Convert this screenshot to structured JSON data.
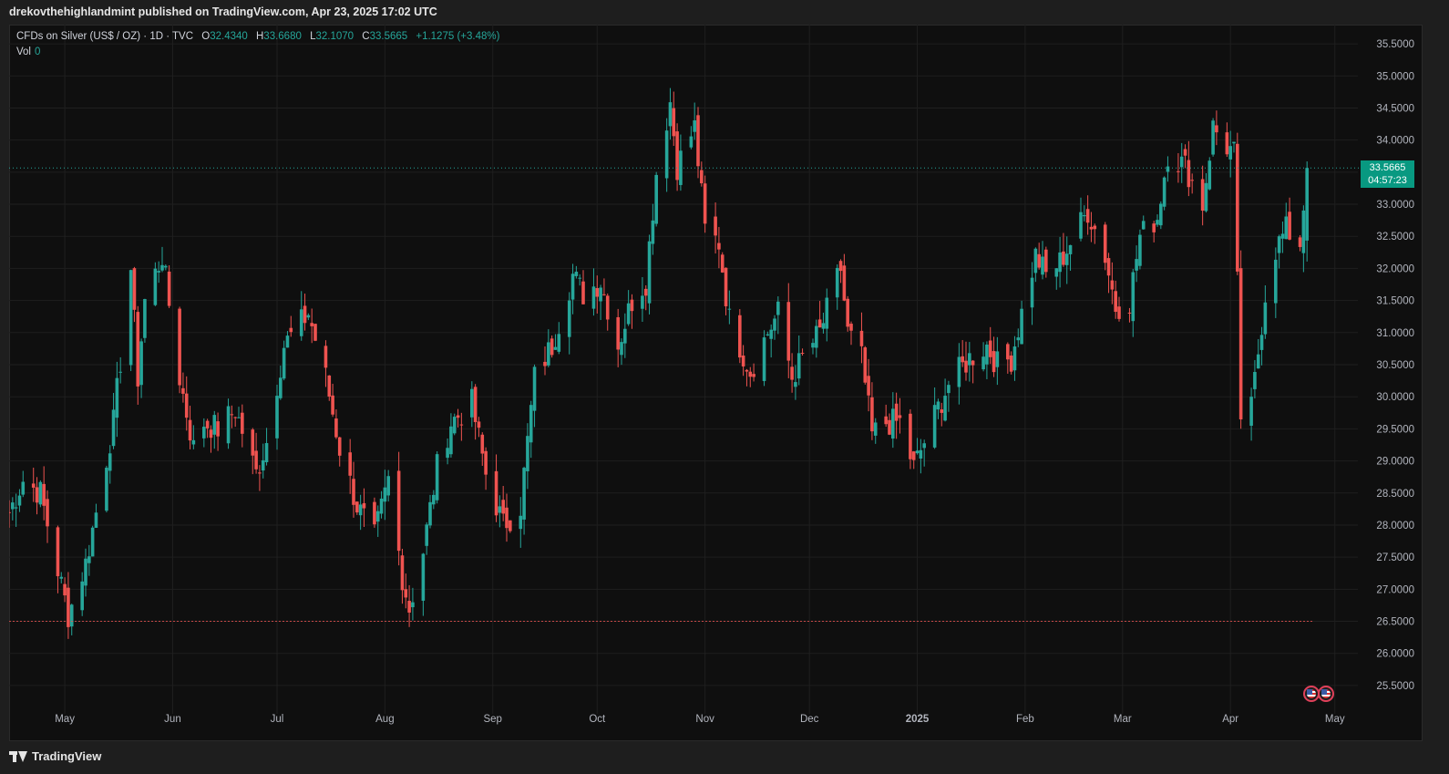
{
  "header": {
    "publish_text": "drekovthehighlandmint published on TradingView.com, Apr 23, 2025 17:02 UTC"
  },
  "legend": {
    "symbol": "CFDs on Silver (US$ / OZ) · 1D · TVC",
    "o_label": "O",
    "o_value": "32.4340",
    "h_label": "H",
    "h_value": "33.6680",
    "l_label": "L",
    "l_value": "32.1070",
    "c_label": "C",
    "c_value": "33.5665",
    "change": "+1.1275 (+3.48%)",
    "vol_label": "Vol",
    "vol_value": "0"
  },
  "price_tag": {
    "price": "33.5665",
    "countdown": "04:57:23"
  },
  "footer": {
    "brand": "TradingView"
  },
  "colors": {
    "up": "#26a69a",
    "down": "#ef5350",
    "background": "#0f0f0f",
    "grid": "#1f1f1f"
  },
  "icons": [
    "tradingview-logo-icon",
    "us-flag-icon"
  ],
  "chart_data": {
    "type": "candlestick",
    "y_ticks": [
      "25.5000",
      "26.0000",
      "26.5000",
      "27.0000",
      "27.5000",
      "28.0000",
      "28.5000",
      "29.0000",
      "29.5000",
      "30.0000",
      "30.5000",
      "31.0000",
      "31.5000",
      "32.0000",
      "32.5000",
      "33.0000",
      "33.5000",
      "34.0000",
      "34.5000",
      "35.0000",
      "35.5000"
    ],
    "ylim": [
      25.2,
      35.8
    ],
    "x_range": [
      "2024-04-15",
      "2025-05-05"
    ],
    "x_ticks": [
      {
        "label": "May",
        "date": "2024-05-01"
      },
      {
        "label": "Jun",
        "date": "2024-06-01"
      },
      {
        "label": "Jul",
        "date": "2024-07-01"
      },
      {
        "label": "Aug",
        "date": "2024-08-01"
      },
      {
        "label": "Sep",
        "date": "2024-09-01"
      },
      {
        "label": "Oct",
        "date": "2024-10-01"
      },
      {
        "label": "Nov",
        "date": "2024-11-01"
      },
      {
        "label": "Dec",
        "date": "2024-12-01"
      },
      {
        "label": "2025",
        "date": "2025-01-01"
      },
      {
        "label": "Feb",
        "date": "2025-02-01"
      },
      {
        "label": "Mar",
        "date": "2025-03-01"
      },
      {
        "label": "Apr",
        "date": "2025-04-01"
      },
      {
        "label": "May",
        "date": "2025-05-01"
      }
    ],
    "current_price": 33.5665,
    "reference_line": 26.5,
    "close_anchors": [
      [
        "2024-04-15",
        28.2
      ],
      [
        "2024-04-19",
        28.7
      ],
      [
        "2024-04-24",
        28.5
      ],
      [
        "2024-04-29",
        27.3
      ],
      [
        "2024-05-02",
        26.6
      ],
      [
        "2024-05-07",
        27.4
      ],
      [
        "2024-05-10",
        28.2
      ],
      [
        "2024-05-15",
        29.6
      ],
      [
        "2024-05-20",
        32.0
      ],
      [
        "2024-05-22",
        30.3
      ],
      [
        "2024-05-24",
        31.5
      ],
      [
        "2024-05-29",
        32.2
      ],
      [
        "2024-06-03",
        30.3
      ],
      [
        "2024-06-07",
        29.2
      ],
      [
        "2024-06-10",
        29.6
      ],
      [
        "2024-06-14",
        29.5
      ],
      [
        "2024-06-19",
        29.8
      ],
      [
        "2024-06-25",
        28.8
      ],
      [
        "2024-06-28",
        29.3
      ],
      [
        "2024-07-03",
        30.8
      ],
      [
        "2024-07-10",
        31.3
      ],
      [
        "2024-07-15",
        30.3
      ],
      [
        "2024-07-19",
        29.2
      ],
      [
        "2024-07-24",
        28.3
      ],
      [
        "2024-07-29",
        27.8
      ],
      [
        "2024-08-02",
        28.7
      ],
      [
        "2024-08-06",
        27.2
      ],
      [
        "2024-08-08",
        26.7
      ],
      [
        "2024-08-12",
        27.6
      ],
      [
        "2024-08-16",
        28.9
      ],
      [
        "2024-08-20",
        29.6
      ],
      [
        "2024-08-26",
        29.9
      ],
      [
        "2024-08-30",
        28.8
      ],
      [
        "2024-09-04",
        28.0
      ],
      [
        "2024-09-09",
        28.3
      ],
      [
        "2024-09-13",
        30.3
      ],
      [
        "2024-09-18",
        30.8
      ],
      [
        "2024-09-24",
        31.9
      ],
      [
        "2024-09-27",
        31.6
      ],
      [
        "2024-10-02",
        31.8
      ],
      [
        "2024-10-07",
        30.8
      ],
      [
        "2024-10-11",
        31.5
      ],
      [
        "2024-10-15",
        31.8
      ],
      [
        "2024-10-18",
        33.5
      ],
      [
        "2024-10-22",
        34.6
      ],
      [
        "2024-10-24",
        33.6
      ],
      [
        "2024-10-29",
        34.2
      ],
      [
        "2024-11-01",
        32.6
      ],
      [
        "2024-11-05",
        32.4
      ],
      [
        "2024-11-08",
        31.2
      ],
      [
        "2024-11-14",
        30.4
      ],
      [
        "2024-11-19",
        31.0
      ],
      [
        "2024-11-22",
        31.3
      ],
      [
        "2024-11-26",
        30.3
      ],
      [
        "2024-11-29",
        30.6
      ],
      [
        "2024-12-04",
        31.0
      ],
      [
        "2024-12-10",
        32.0
      ],
      [
        "2024-12-12",
        31.0
      ],
      [
        "2024-12-16",
        30.6
      ],
      [
        "2024-12-19",
        29.4
      ],
      [
        "2024-12-23",
        29.6
      ],
      [
        "2024-12-27",
        29.6
      ],
      [
        "2024-12-31",
        28.9
      ],
      [
        "2025-01-06",
        29.7
      ],
      [
        "2025-01-10",
        30.2
      ],
      [
        "2025-01-16",
        30.6
      ],
      [
        "2025-01-21",
        30.8
      ],
      [
        "2025-01-24",
        30.5
      ],
      [
        "2025-01-28",
        30.6
      ],
      [
        "2025-01-31",
        31.3
      ],
      [
        "2025-02-04",
        32.2
      ],
      [
        "2025-02-07",
        31.9
      ],
      [
        "2025-02-11",
        32.1
      ],
      [
        "2025-02-14",
        32.4
      ],
      [
        "2025-02-19",
        32.9
      ],
      [
        "2025-02-24",
        32.2
      ],
      [
        "2025-02-27",
        31.4
      ],
      [
        "2025-03-03",
        31.5
      ],
      [
        "2025-03-06",
        32.5
      ],
      [
        "2025-03-11",
        32.8
      ],
      [
        "2025-03-14",
        33.8
      ],
      [
        "2025-03-19",
        33.6
      ],
      [
        "2025-03-24",
        33.0
      ],
      [
        "2025-03-27",
        34.2
      ],
      [
        "2025-03-31",
        33.9
      ],
      [
        "2025-04-02",
        33.8
      ],
      [
        "2025-04-04",
        29.7
      ],
      [
        "2025-04-07",
        29.8
      ],
      [
        "2025-04-09",
        30.7
      ],
      [
        "2025-04-11",
        31.6
      ],
      [
        "2025-04-14",
        32.3
      ],
      [
        "2025-04-17",
        32.6
      ],
      [
        "2025-04-21",
        32.4
      ],
      [
        "2025-04-23",
        33.5665
      ]
    ]
  }
}
